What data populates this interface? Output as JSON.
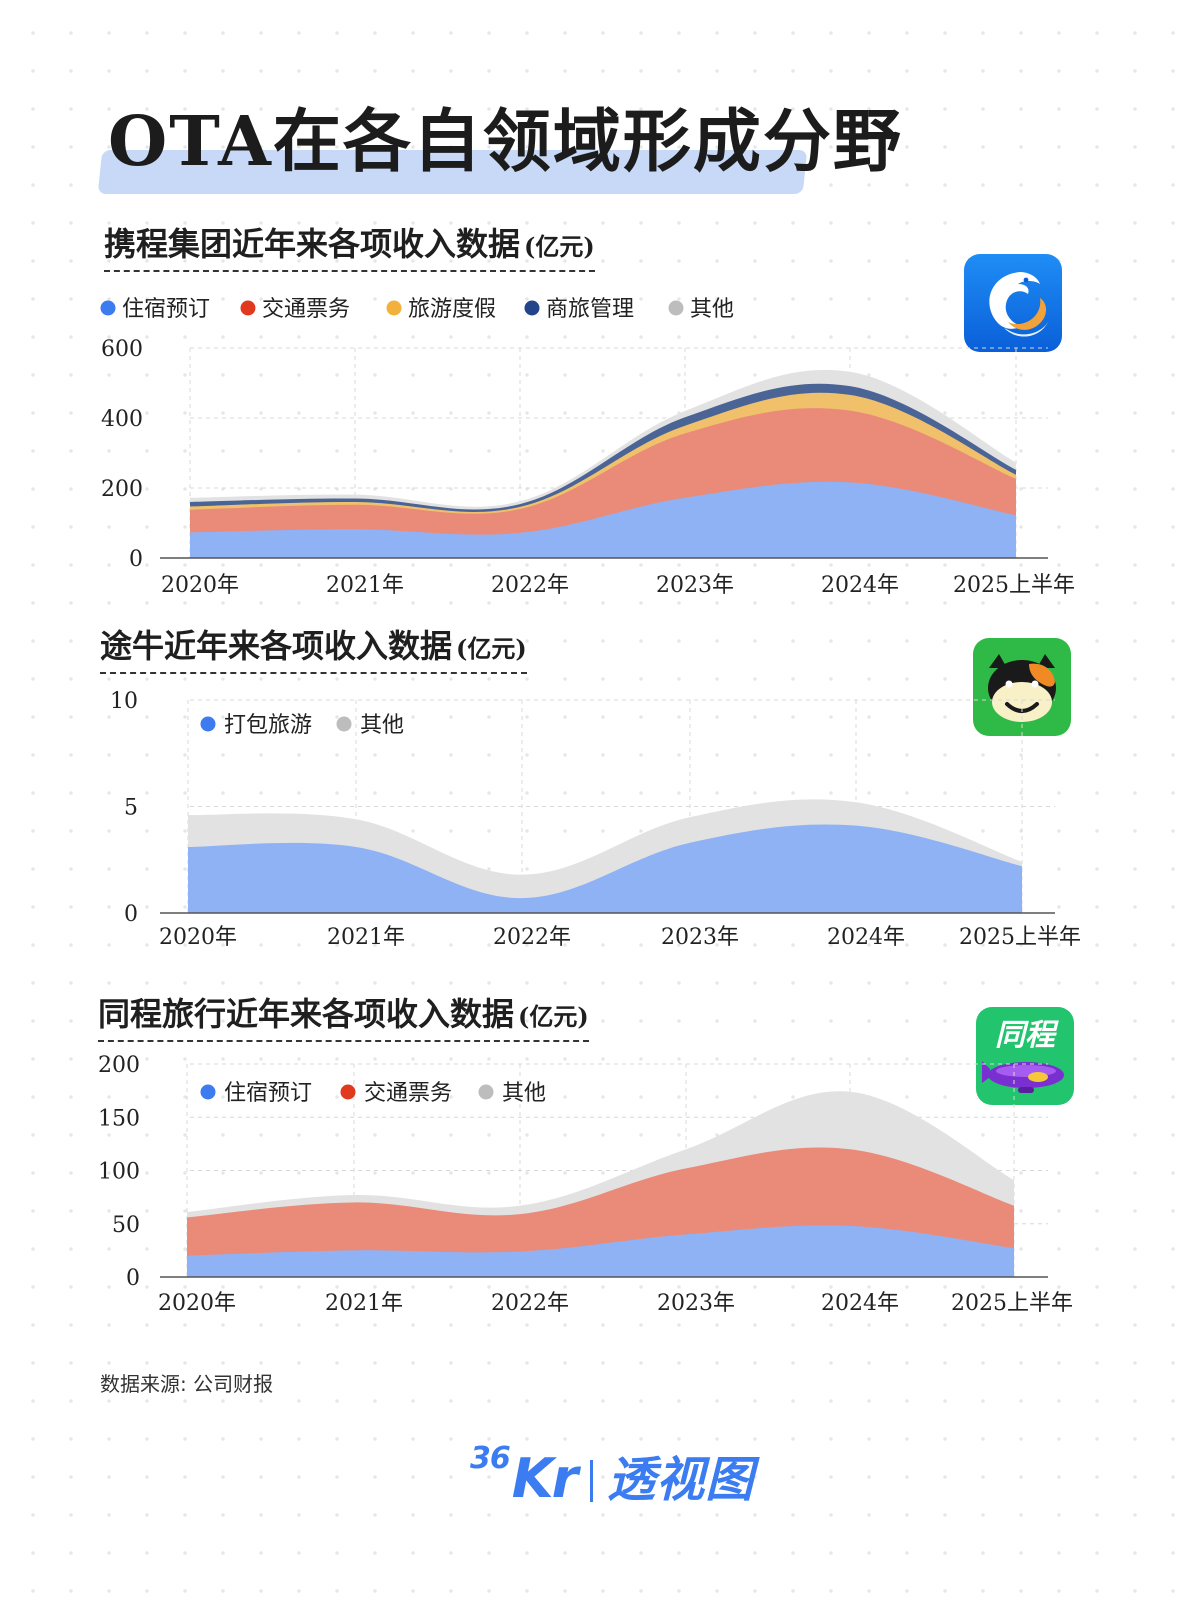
{
  "title": "OTA在各自领域形成分野",
  "unit": "(亿元)",
  "source": "数据来源: 公司财报",
  "brand": {
    "prefix": "36",
    "kr": "Kr",
    "name": "透视图"
  },
  "colors": {
    "住宿预订": "#8fb2f5",
    "交通票务": "#ea8a79",
    "旅游度假": "#f1c06a",
    "商旅管理": "#4a6496",
    "其他": "#e2e2e2",
    "打包旅游": "#8fb2f5"
  },
  "legend_dot_colors": {
    "住宿预订": "#3d7bf0",
    "交通票务": "#e0391f",
    "旅游度假": "#f2b13a",
    "商旅管理": "#23448a",
    "其他": "#bdbdbd",
    "打包旅游": "#3d7bf0"
  },
  "logos": {
    "tongcheng_text": "同程"
  },
  "chart_data": [
    {
      "type": "area",
      "stacked": true,
      "company": "携程集团",
      "title": "携程集团近年来各项收入数据",
      "categories": [
        "2020年",
        "2021年",
        "2022年",
        "2023年",
        "2024年",
        "2025上半年"
      ],
      "yticks": [
        0,
        200,
        400,
        600
      ],
      "ylim": [
        0,
        600
      ],
      "grid": true,
      "legend_position": "top-left",
      "series": [
        {
          "name": "住宿预订",
          "values": [
            73,
            82,
            72,
            172,
            216,
            122
          ]
        },
        {
          "name": "交通票务",
          "values": [
            65,
            70,
            68,
            184,
            205,
            104
          ]
        },
        {
          "name": "旅游度假",
          "values": [
            9,
            8,
            6,
            22,
            45,
            12
          ]
        },
        {
          "name": "商旅管理",
          "values": [
            13,
            10,
            8,
            24,
            25,
            14
          ]
        },
        {
          "name": "其他",
          "values": [
            12,
            11,
            8,
            18,
            41,
            21
          ]
        }
      ]
    },
    {
      "type": "area",
      "stacked": true,
      "company": "途牛",
      "title": "途牛近年来各项收入数据",
      "categories": [
        "2020年",
        "2021年",
        "2022年",
        "2023年",
        "2024年",
        "2025上半年"
      ],
      "yticks": [
        0,
        5,
        10
      ],
      "ylim": [
        0,
        10
      ],
      "grid": true,
      "legend_position": "top-left",
      "series": [
        {
          "name": "打包旅游",
          "values": [
            3.1,
            3.1,
            0.7,
            3.3,
            4.1,
            2.2
          ]
        },
        {
          "name": "其他",
          "values": [
            1.5,
            1.3,
            1.1,
            1.2,
            1.1,
            0.2
          ]
        }
      ]
    },
    {
      "type": "area",
      "stacked": true,
      "company": "同程旅行",
      "title": "同程旅行近年来各项收入数据",
      "categories": [
        "2020年",
        "2021年",
        "2022年",
        "2023年",
        "2024年",
        "2025上半年"
      ],
      "yticks": [
        0,
        50,
        100,
        150,
        200
      ],
      "ylim": [
        0,
        200
      ],
      "grid": true,
      "legend_position": "top-left",
      "series": [
        {
          "name": "住宿预订",
          "values": [
            20,
            25,
            24,
            40,
            48,
            27
          ]
        },
        {
          "name": "交通票务",
          "values": [
            36,
            45,
            35,
            62,
            72,
            40
          ]
        },
        {
          "name": "其他",
          "values": [
            5,
            7,
            8,
            18,
            54,
            24
          ]
        }
      ]
    }
  ]
}
